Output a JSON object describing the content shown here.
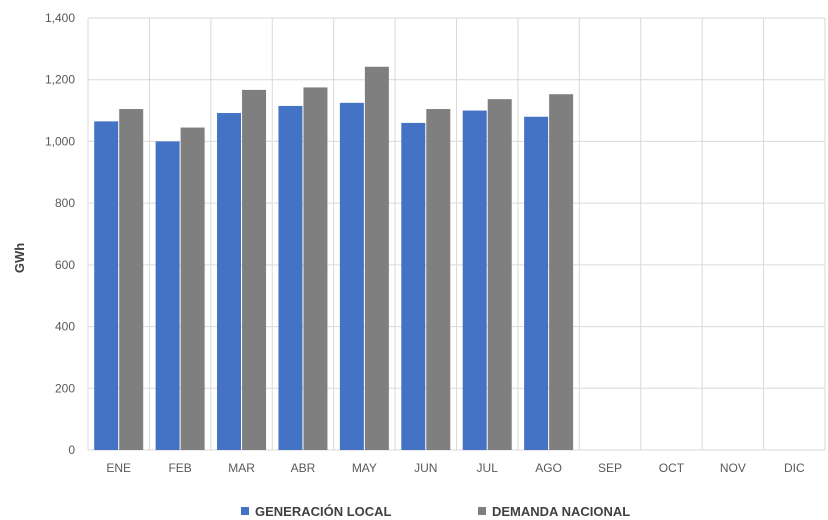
{
  "chart_data": {
    "type": "bar",
    "title": "",
    "xlabel": "",
    "ylabel": "GWh",
    "ylim": [
      0,
      1400
    ],
    "yticks": [
      "0",
      "200",
      "400",
      "600",
      "800",
      "1,000",
      "1,200",
      "1,400"
    ],
    "categories": [
      "ENE",
      "FEB",
      "MAR",
      "ABR",
      "MAY",
      "JUN",
      "JUL",
      "AGO",
      "SEP",
      "OCT",
      "NOV",
      "DIC"
    ],
    "series": [
      {
        "name": "GENERACIÓN LOCAL",
        "color": "#4472c4",
        "values": [
          1065,
          1000,
          1092,
          1115,
          1125,
          1060,
          1100,
          1080,
          null,
          null,
          null,
          null
        ]
      },
      {
        "name": "DEMANDA NACIONAL",
        "color": "#7f7f7f",
        "values": [
          1105,
          1045,
          1167,
          1175,
          1242,
          1105,
          1137,
          1153,
          null,
          null,
          null,
          null
        ]
      }
    ],
    "grid": true,
    "legend_position": "bottom"
  }
}
